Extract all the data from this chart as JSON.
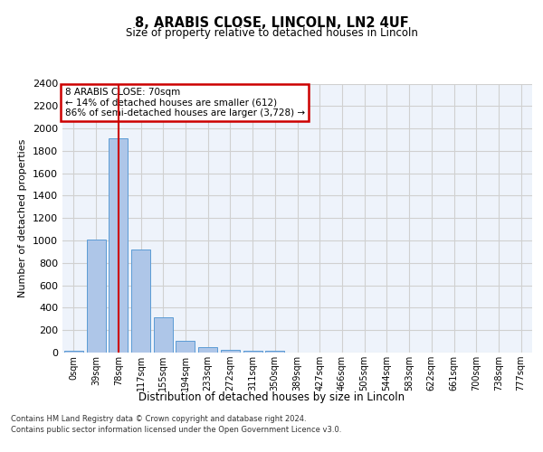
{
  "title_line1": "8, ARABIS CLOSE, LINCOLN, LN2 4UF",
  "title_line2": "Size of property relative to detached houses in Lincoln",
  "xlabel": "Distribution of detached houses by size in Lincoln",
  "ylabel": "Number of detached properties",
  "categories": [
    "0sqm",
    "39sqm",
    "78sqm",
    "117sqm",
    "155sqm",
    "194sqm",
    "233sqm",
    "272sqm",
    "311sqm",
    "350sqm",
    "389sqm",
    "427sqm",
    "466sqm",
    "505sqm",
    "544sqm",
    "583sqm",
    "622sqm",
    "661sqm",
    "700sqm",
    "738sqm",
    "777sqm"
  ],
  "bar_heights": [
    15,
    1010,
    1910,
    920,
    315,
    105,
    48,
    28,
    20,
    15,
    0,
    0,
    0,
    0,
    0,
    0,
    0,
    0,
    0,
    0,
    0
  ],
  "bar_color": "#aec6e8",
  "bar_edge_color": "#5b9bd5",
  "grid_color": "#d0d0d0",
  "background_color": "#ffffff",
  "plot_bg_color": "#eef3fb",
  "ylim": [
    0,
    2400
  ],
  "yticks": [
    0,
    200,
    400,
    600,
    800,
    1000,
    1200,
    1400,
    1600,
    1800,
    2000,
    2200,
    2400
  ],
  "red_line_x": 2,
  "annotation_text": "8 ARABIS CLOSE: 70sqm\n← 14% of detached houses are smaller (612)\n86% of semi-detached houses are larger (3,728) →",
  "annotation_box_color": "#ffffff",
  "annotation_box_edge": "#cc0000",
  "footer_line1": "Contains HM Land Registry data © Crown copyright and database right 2024.",
  "footer_line2": "Contains public sector information licensed under the Open Government Licence v3.0."
}
